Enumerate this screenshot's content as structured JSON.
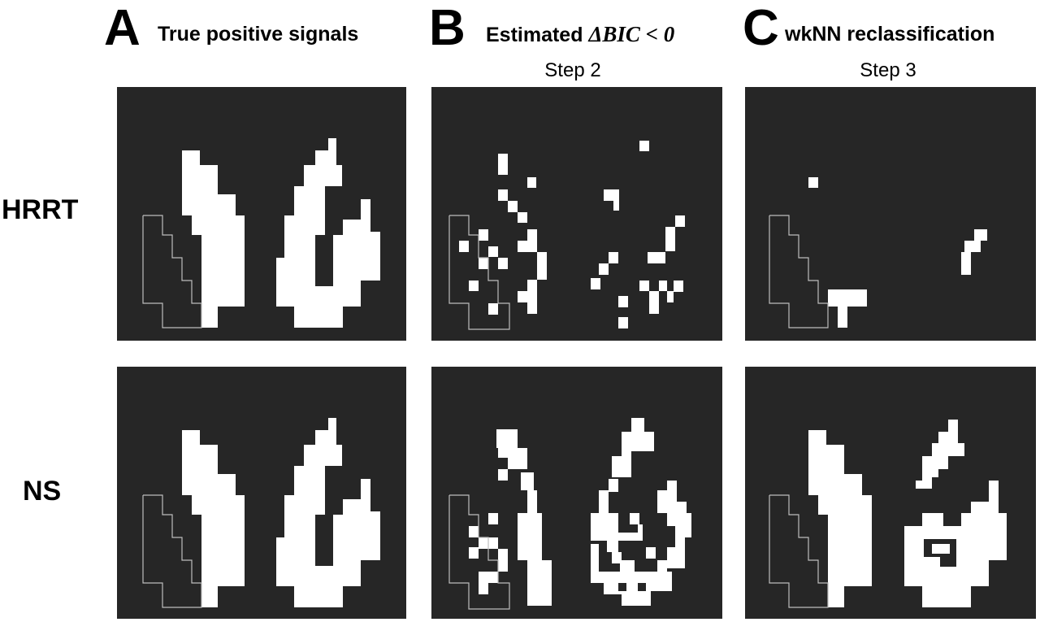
{
  "columns": [
    {
      "letter": "A",
      "title": "True positive signals",
      "math": "",
      "step": ""
    },
    {
      "letter": "B",
      "title": "Estimated ",
      "math": "ΔBIC < 0",
      "step": "Step 2"
    },
    {
      "letter": "C",
      "title": "wkNN reclassification",
      "math": "",
      "step": "Step 3"
    }
  ],
  "rows": [
    {
      "label": "HRRT"
    },
    {
      "label": "NS"
    }
  ],
  "colors": {
    "panel_background": "#262626",
    "signal": "#ffffff",
    "roi_outline": "#bdbdbd",
    "page_background": "#ffffff"
  }
}
